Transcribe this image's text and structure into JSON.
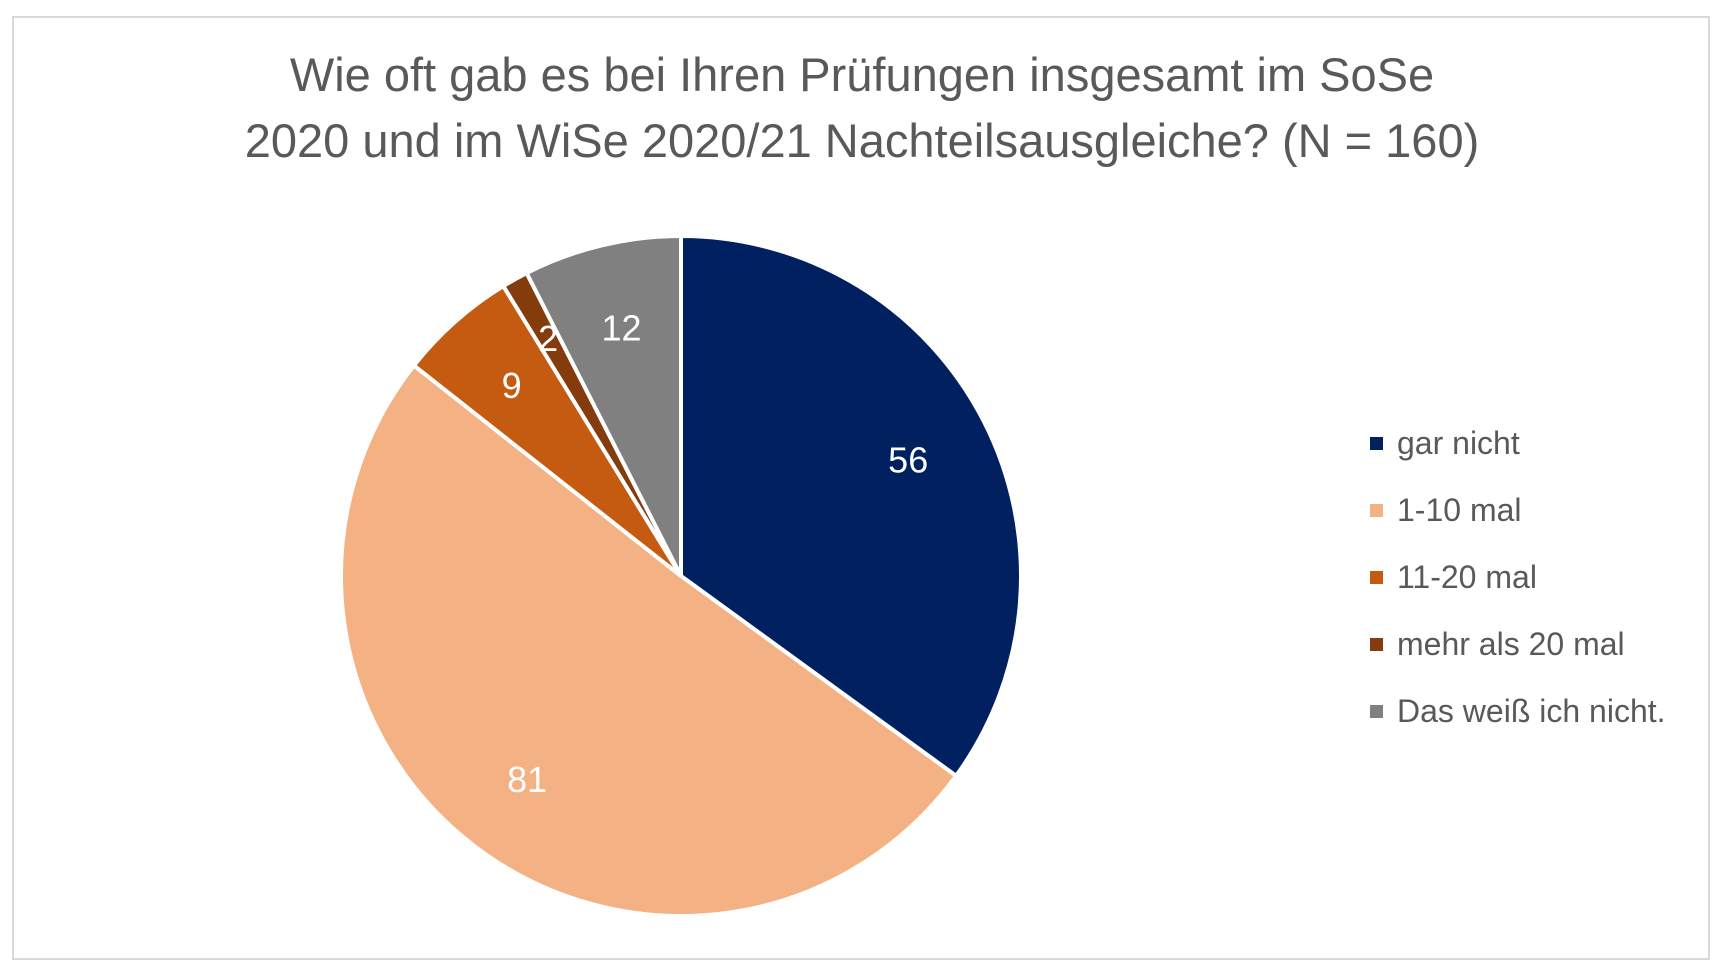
{
  "chart_data": {
    "type": "pie",
    "title_lines": [
      "Wie oft gab es bei Ihren Prüfungen insgesamt im SoSe",
      "2020 und im WiSe 2020/21 Nachteilsausgleiche? (N = 160)"
    ],
    "categories": [
      "gar nicht",
      "1-10 mal",
      "11-20 mal",
      "mehr als 20 mal",
      "Das weiß ich nicht."
    ],
    "values": [
      56,
      81,
      9,
      2,
      12
    ],
    "data_labels": [
      "56",
      "81",
      "9",
      "2",
      "12"
    ],
    "colors": [
      "#002060",
      "#F4B183",
      "#C55A11",
      "#843C0C",
      "#808080"
    ],
    "label_color": "#ffffff",
    "legend_position": "right",
    "start_angle": "12 o'clock",
    "direction": "clockwise"
  }
}
